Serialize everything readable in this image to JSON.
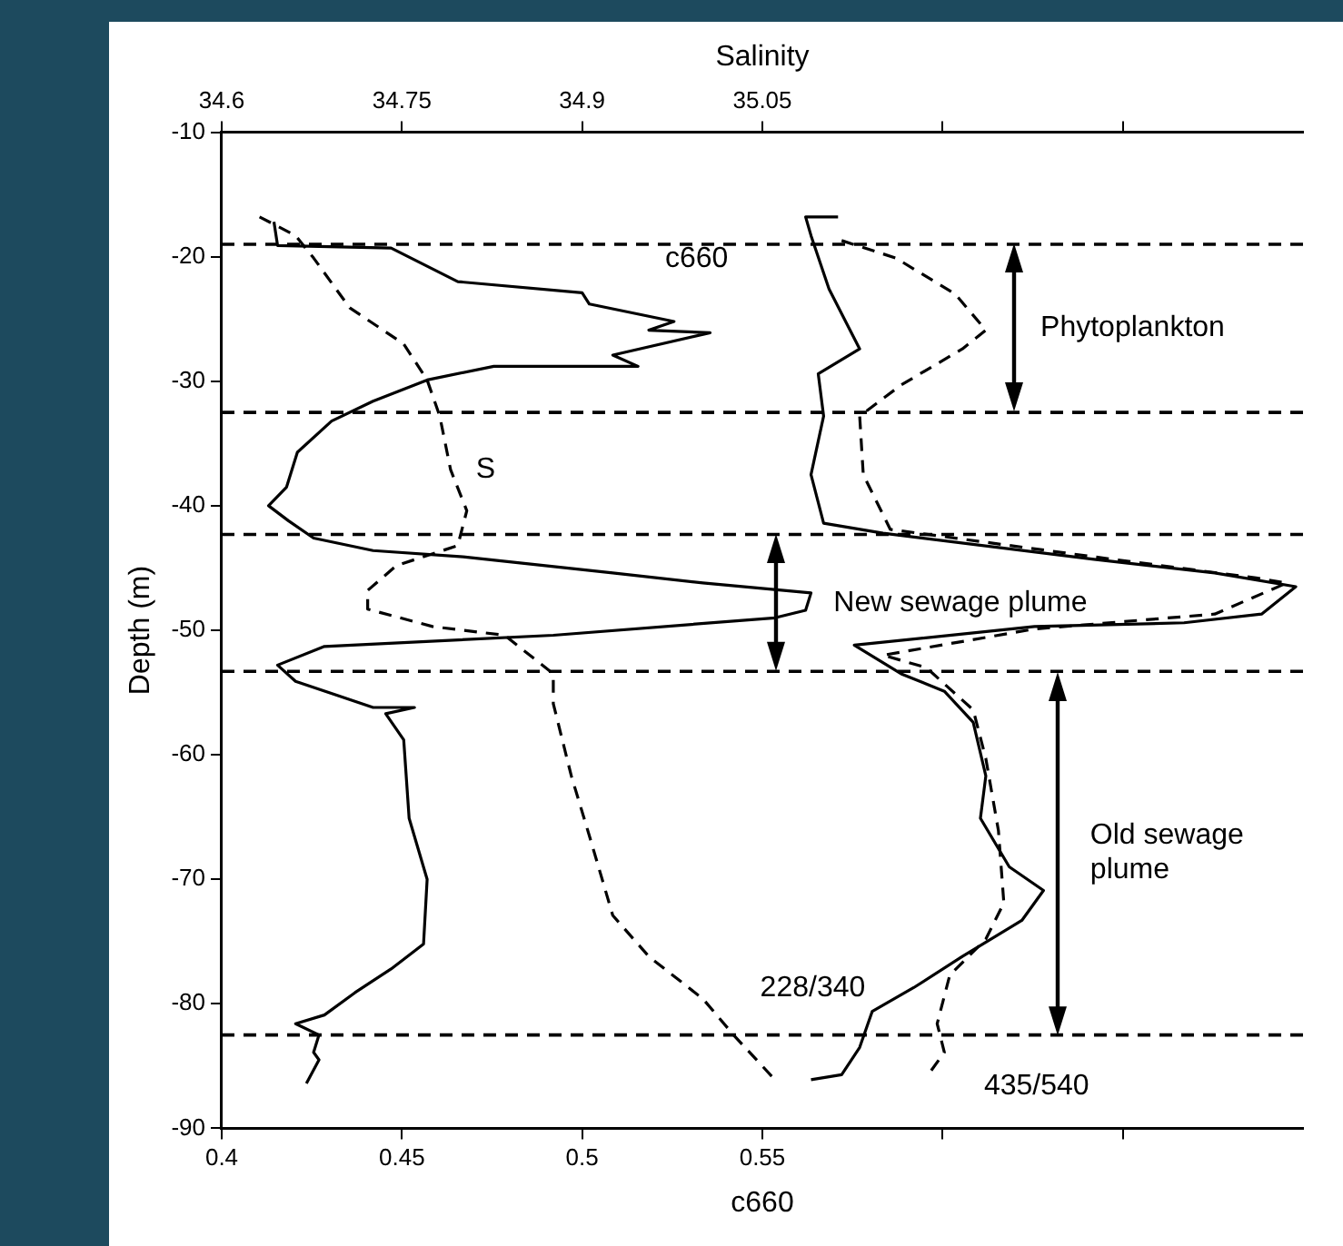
{
  "chart_data": {
    "type": "line",
    "xlabel": "c660",
    "x2label": "Salinity",
    "ylabel": "Depth (m)",
    "xlim": [
      0.4,
      0.7
    ],
    "xticks": [
      0.4,
      0.45,
      0.5,
      0.55,
      {
        "value": 0.6,
        "label": null
      },
      {
        "value": 0.65,
        "label": null
      }
    ],
    "x2lim": [
      34.6,
      35.5
    ],
    "x2ticks": [
      34.6,
      34.75,
      34.9,
      35.05,
      {
        "value": 35.2,
        "label": null
      },
      {
        "value": 35.35,
        "label": null
      }
    ],
    "ylim": [
      -90,
      -10
    ],
    "yticks": [
      -90,
      -80,
      -70,
      -60,
      -50,
      -40,
      -30,
      -20,
      -10
    ],
    "grid": false,
    "legend": false,
    "marker": "none",
    "series": [
      {
        "name": "c660",
        "color": "#000000",
        "line_style": "solid",
        "x": [
          0.4145,
          0.4155,
          0.447,
          0.4655,
          0.5,
          0.502,
          0.5255,
          0.5185,
          0.5355,
          0.5085,
          0.5155,
          0.4755,
          0.457,
          0.442,
          0.4305,
          0.421,
          0.418,
          0.413,
          0.4185,
          0.4255,
          0.442,
          0.467,
          0.5085,
          0.5335,
          0.5635,
          0.562,
          0.5535,
          0.492,
          0.4285,
          0.4155,
          0.4205,
          0.442,
          0.4535,
          0.4455,
          0.4505,
          0.452,
          0.457,
          0.456,
          0.447,
          0.437,
          0.4285,
          0.4205,
          0.427,
          0.4255,
          0.427,
          0.4235
        ],
        "values": [
          -17.2,
          -19.1,
          -19.3,
          -22.0,
          -22.9,
          -23.8,
          -25.2,
          -25.9,
          -26.1,
          -27.9,
          -28.8,
          -28.8,
          -29.9,
          -31.6,
          -33.2,
          -35.7,
          -38.5,
          -40.0,
          -41.2,
          -42.6,
          -43.6,
          -44.1,
          -45.4,
          -46.2,
          -47.0,
          -48.4,
          -49.0,
          -50.4,
          -51.3,
          -52.8,
          -54.1,
          -56.2,
          -56.2,
          -56.7,
          -58.8,
          -65.1,
          -70.0,
          -75.2,
          -77.2,
          -79.1,
          -80.9,
          -81.6,
          -82.5,
          -83.9,
          -84.5,
          -86.4
        ]
      },
      {
        "name": "S",
        "color": "#000000",
        "line_style": "dashed",
        "axis": "x2",
        "x": [
          34.6315,
          34.6615,
          34.6765,
          34.7065,
          34.7515,
          34.771,
          34.7815,
          34.7905,
          34.804,
          34.7965,
          34.7455,
          34.7215,
          34.7215,
          34.7755,
          34.8355,
          34.876,
          34.876,
          34.891,
          34.906,
          34.9255,
          34.9555,
          35.0005,
          35.026,
          35.0605
        ],
        "values": [
          -16.8,
          -18.3,
          -20.1,
          -24.1,
          -27.0,
          -29.9,
          -32.8,
          -37.1,
          -40.4,
          -43.2,
          -44.8,
          -46.8,
          -48.3,
          -49.7,
          -50.4,
          -53.5,
          -55.9,
          -61.7,
          -66.5,
          -72.9,
          -76.2,
          -79.6,
          -82.5,
          -86.1
        ]
      },
      {
        "name": "228/340",
        "color": "#000000",
        "line_style": "solid",
        "x": [
          0.571,
          0.562,
          0.5635,
          0.5685,
          0.577,
          0.5655,
          0.567,
          0.5635,
          0.567,
          0.5835,
          0.642,
          0.6755,
          0.698,
          0.6885,
          0.667,
          0.6255,
          0.5755,
          0.5885,
          0.6005,
          0.6085,
          0.612,
          0.6105,
          0.6185,
          0.628,
          0.622,
          0.6055,
          0.592,
          0.5805,
          0.577,
          0.572,
          0.5635
        ],
        "values": [
          -16.8,
          -16.8,
          -18.3,
          -22.6,
          -27.4,
          -29.4,
          -32.8,
          -37.5,
          -41.4,
          -42.2,
          -44.3,
          -45.4,
          -46.5,
          -48.7,
          -49.4,
          -49.7,
          -51.2,
          -53.5,
          -54.9,
          -57.4,
          -61.7,
          -65.1,
          -69.0,
          -70.9,
          -73.3,
          -76.2,
          -78.7,
          -80.6,
          -83.5,
          -85.7,
          -86.1
        ]
      },
      {
        "name": "435/540",
        "color": "#000000",
        "line_style": "dashed",
        "x": [
          0.572,
          0.587,
          0.6035,
          0.612,
          0.6055,
          0.5885,
          0.577,
          0.578,
          0.5855,
          0.642,
          0.687,
          0.6955,
          0.6755,
          0.6255,
          0.5835,
          0.5955,
          0.6085,
          0.612,
          0.6155,
          0.617,
          0.612,
          0.602,
          0.5985,
          0.6005,
          0.5955
        ],
        "values": [
          -18.7,
          -20.1,
          -23.0,
          -25.9,
          -27.4,
          -30.3,
          -32.8,
          -37.5,
          -41.9,
          -44.1,
          -45.8,
          -46.2,
          -48.7,
          -49.9,
          -52.0,
          -53.0,
          -56.4,
          -60.3,
          -66.1,
          -71.9,
          -74.8,
          -77.7,
          -81.6,
          -83.9,
          -85.9
        ]
      }
    ],
    "ref_lines": [
      {
        "axis": "y",
        "value": -19,
        "color": "#000000",
        "line_style": "dashed"
      },
      {
        "axis": "y",
        "value": -32.5,
        "color": "#000000",
        "line_style": "dashed"
      },
      {
        "axis": "y",
        "value": -42.3,
        "color": "#000000",
        "line_style": "dashed"
      },
      {
        "axis": "y",
        "value": -53.3,
        "color": "#000000",
        "line_style": "dashed"
      },
      {
        "axis": "y",
        "value": -82.5,
        "color": "#000000",
        "line_style": "dashed"
      }
    ],
    "annotations": [
      "Phytoplankton",
      "New sewage plume",
      "Old sewage plume"
    ]
  }
}
